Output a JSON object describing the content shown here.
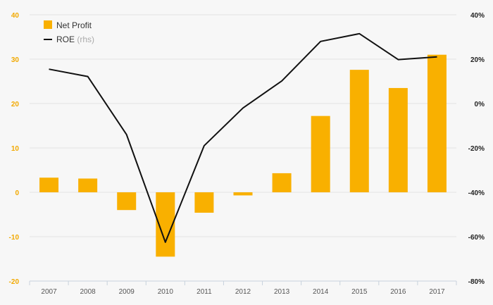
{
  "chart_data": {
    "type": "bar",
    "categories": [
      "2007",
      "2008",
      "2009",
      "2010",
      "2011",
      "2012",
      "2013",
      "2014",
      "2015",
      "2016",
      "2017"
    ],
    "series": [
      {
        "name": "Net Profit",
        "type": "bar",
        "axis": "left",
        "color": "#f9b000",
        "values": [
          3.3,
          3.1,
          -4.0,
          -14.5,
          -4.6,
          -0.7,
          4.3,
          17.2,
          27.6,
          23.5,
          31.0
        ]
      },
      {
        "name": "ROE",
        "name_suffix": "(rhs)",
        "type": "line",
        "axis": "right",
        "color": "#111111",
        "values": [
          0.155,
          0.122,
          -0.14,
          -0.625,
          -0.19,
          -0.02,
          0.102,
          0.28,
          0.315,
          0.198,
          0.21
        ]
      }
    ],
    "y_left": {
      "ylim": [
        -20,
        40
      ],
      "ticks": [
        "40",
        "30",
        "20",
        "10",
        "0",
        "-10",
        "-20"
      ],
      "tick_values": [
        40,
        30,
        20,
        10,
        0,
        -10,
        -20
      ],
      "color": "#f2a900"
    },
    "y_right": {
      "ylim": [
        -0.8,
        0.4
      ],
      "ticks": [
        "40%",
        "20%",
        "0%",
        "-20%",
        "-40%",
        "-60%",
        "-80%"
      ],
      "tick_values": [
        0.4,
        0.2,
        0,
        -0.2,
        -0.4,
        -0.6,
        -0.8
      ],
      "color": "#222222"
    },
    "grid": true,
    "legend_position": "top-left"
  }
}
